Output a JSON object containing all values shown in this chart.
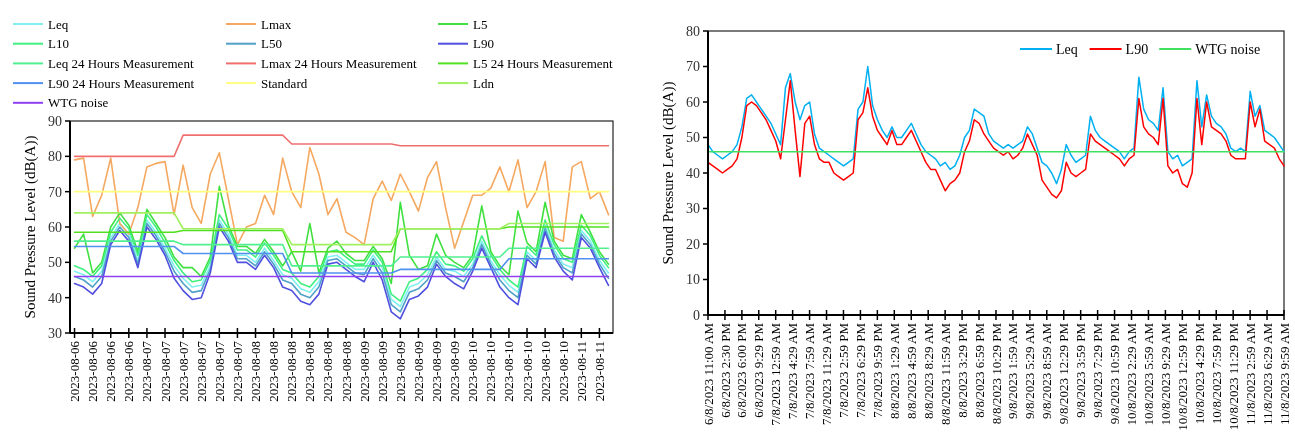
{
  "chart_data": [
    {
      "type": "line",
      "ylabel": "Sound Pressure Level (dB(A))",
      "legend": "top",
      "ylim": [
        30,
        90
      ],
      "yticks": [
        30,
        40,
        50,
        60,
        70,
        80,
        90
      ],
      "categories": [
        "2023-08-06",
        null,
        "2023-08-06",
        null,
        "2023-08-06",
        null,
        "2023-08-06",
        null,
        "2023-08-07",
        null,
        "2023-08-07",
        null,
        "2023-08-07",
        null,
        "2023-08-07",
        null,
        "2023-08-07",
        null,
        "2023-08-07",
        null,
        "2023-08-08",
        null,
        "2023-08-08",
        null,
        "2023-08-08",
        null,
        "2023-08-08",
        null,
        "2023-08-08",
        null,
        "2023-08-08",
        null,
        "2023-08-09",
        null,
        "2023-08-09",
        null,
        "2023-08-09",
        null,
        "2023-08-09",
        null,
        "2023-08-09",
        null,
        "2023-08-09",
        null,
        "2023-08-10",
        null,
        "2023-08-10",
        null,
        "2023-08-10",
        null,
        "2023-08-10",
        null,
        "2023-08-10",
        null,
        "2023-08-10",
        null,
        "2023-08-11",
        null,
        "2023-08-11",
        null
      ],
      "series": [
        {
          "name": "Leq",
          "color": "#80f0f0",
          "values": [
            47.5,
            46.5,
            44.5,
            47.5,
            57,
            61,
            58,
            50.5,
            62,
            58.5,
            54,
            49,
            45.5,
            43,
            43.5,
            49,
            62,
            58,
            52,
            52,
            50,
            54,
            50.5,
            46.5,
            45.5,
            42.5,
            41.5,
            44.5,
            51.5,
            52,
            50,
            48,
            48,
            52,
            48.5,
            39.5,
            37.5,
            43,
            44,
            46.5,
            51.5,
            48,
            47.5,
            46,
            49.5,
            56,
            50.5,
            46.5,
            43.5,
            41.5,
            53,
            50.5,
            60.5,
            53.5,
            49.5,
            48.5,
            59,
            56,
            50.5,
            47
          ]
        },
        {
          "name": "Lmax",
          "color": "#f5a860",
          "values": [
            79,
            79.5,
            63,
            69,
            79.5,
            61,
            58,
            65.5,
            77,
            78,
            78.5,
            63.5,
            77.5,
            65.5,
            61,
            75,
            81,
            68,
            55,
            60,
            61,
            69,
            63.5,
            79.5,
            70,
            65.5,
            82.5,
            75,
            63.5,
            68,
            58.5,
            57,
            55,
            68,
            73,
            67.5,
            75,
            70,
            64.5,
            74,
            78.5,
            65.5,
            54,
            61.5,
            69,
            69,
            71,
            77,
            70,
            79,
            65.5,
            70,
            78.5,
            57,
            56,
            77,
            78.5,
            68,
            70,
            63.5
          ]
        },
        {
          "name": "L5",
          "color": "#40e040",
          "values": [
            54,
            58,
            47,
            50,
            60,
            64,
            60.5,
            53,
            65,
            61,
            57,
            51.5,
            48.5,
            48.5,
            46,
            51.5,
            71.5,
            60.5,
            54.5,
            54.5,
            52.5,
            56.5,
            53,
            49,
            53,
            47.5,
            61,
            47,
            54,
            56,
            52.5,
            50.5,
            50.5,
            54.5,
            51,
            44,
            67,
            52,
            48,
            49,
            58,
            52,
            50,
            48.5,
            52,
            66,
            53,
            49,
            46.5,
            64.5,
            55.5,
            53,
            67,
            56,
            52,
            51,
            63.5,
            58.5,
            53,
            49.5
          ]
        },
        {
          "name": "L10",
          "color": "#40f080",
          "values": [
            49,
            48,
            46,
            49,
            58.5,
            62.5,
            59.5,
            52,
            63.5,
            60,
            55.5,
            50.5,
            47,
            44.5,
            45,
            50.5,
            63.5,
            59.5,
            53.5,
            53.5,
            51.5,
            55.5,
            52,
            48,
            47,
            44,
            43,
            46,
            53,
            53.5,
            51.5,
            49.5,
            49.5,
            53.5,
            50,
            41,
            39,
            44.5,
            45.5,
            48,
            53,
            49.5,
            49,
            47.5,
            51,
            57.5,
            52,
            48,
            45,
            43,
            54.5,
            52,
            62,
            55,
            51,
            50,
            60.5,
            57.5,
            52,
            48.5
          ]
        },
        {
          "name": "L50",
          "color": "#50a0c8",
          "values": [
            46,
            45,
            43,
            46,
            56,
            60,
            57,
            49.5,
            61,
            57.5,
            53,
            47.5,
            44,
            41.5,
            42,
            48,
            61,
            57,
            51,
            51,
            49,
            53,
            49.5,
            45,
            44,
            41,
            40,
            43,
            50.5,
            51,
            49,
            47,
            46.5,
            51,
            47,
            38,
            36,
            41.5,
            42.5,
            45,
            50.5,
            47,
            46,
            44.5,
            48.5,
            55,
            49.5,
            45,
            42,
            40,
            52,
            49.5,
            59.5,
            52.5,
            48.5,
            47,
            58,
            55,
            49.5,
            45.5
          ]
        },
        {
          "name": "L90",
          "color": "#5050e0",
          "values": [
            44,
            43,
            41,
            44,
            55,
            59,
            56,
            48.5,
            60,
            56.5,
            52,
            45.5,
            42,
            39.5,
            40,
            47,
            60,
            56,
            50,
            50,
            48,
            52,
            48.5,
            43,
            42,
            39,
            38,
            41,
            49.5,
            50,
            48,
            46,
            44.5,
            50,
            45,
            36,
            34,
            39.5,
            40.5,
            43,
            49.5,
            46,
            44,
            42.5,
            47.5,
            54,
            48.5,
            43,
            40,
            38,
            51,
            48.5,
            58.5,
            51.5,
            47.5,
            45,
            57,
            54,
            48.5,
            43.5
          ]
        },
        {
          "name": "Leq 24 Hours Measurement",
          "color": "#50f090",
          "values": [
            56,
            56,
            56,
            56,
            56,
            56,
            56,
            56,
            56,
            56,
            56,
            56,
            55,
            55,
            55,
            55,
            55,
            55,
            55,
            55,
            55,
            55,
            55,
            55,
            49,
            49,
            49,
            49,
            49,
            49,
            49,
            49,
            49,
            49,
            49,
            49,
            51.5,
            51.5,
            51.5,
            51.5,
            51.5,
            51.5,
            51.5,
            51.5,
            51.5,
            51.5,
            51.5,
            51.5,
            54,
            54,
            54,
            54,
            54,
            54,
            54,
            54,
            54,
            54,
            54,
            54
          ]
        },
        {
          "name": "Lmax 24 Hours Measurement",
          "color": "#f07070",
          "values": [
            80,
            80,
            80,
            80,
            80,
            80,
            80,
            80,
            80,
            80,
            80,
            80,
            86,
            86,
            86,
            86,
            86,
            86,
            86,
            86,
            86,
            86,
            86,
            86,
            83.5,
            83.5,
            83.5,
            83.5,
            83.5,
            83.5,
            83.5,
            83.5,
            83.5,
            83.5,
            83.5,
            83.5,
            83,
            83,
            83,
            83,
            83,
            83,
            83,
            83,
            83,
            83,
            83,
            83,
            83,
            83,
            83,
            83,
            83,
            83,
            83,
            83,
            83,
            83,
            83,
            83
          ]
        },
        {
          "name": "L5 24 Hours Measurement",
          "color": "#50e020",
          "values": [
            58.5,
            58.5,
            58.5,
            58.5,
            58.5,
            58.5,
            58.5,
            58.5,
            58.5,
            58.5,
            58.5,
            58.5,
            59,
            59,
            59,
            59,
            59,
            59,
            59,
            59,
            59,
            59,
            59,
            59,
            53,
            53,
            53,
            53,
            53,
            53,
            53,
            53,
            53,
            53,
            53,
            53,
            59.5,
            59.5,
            59.5,
            59.5,
            59.5,
            59.5,
            59.5,
            59.5,
            59.5,
            59.5,
            59.5,
            59.5,
            60,
            60,
            60,
            60,
            60,
            60,
            60,
            60,
            60,
            60,
            60,
            60
          ]
        },
        {
          "name": "L90 24 Hours Measurement",
          "color": "#5090f0",
          "values": [
            54.5,
            54.5,
            54.5,
            54.5,
            54.5,
            54.5,
            54.5,
            54.5,
            54.5,
            54.5,
            54.5,
            54.5,
            52.5,
            52.5,
            52.5,
            52.5,
            52.5,
            52.5,
            52.5,
            52.5,
            52.5,
            52.5,
            52.5,
            52.5,
            47,
            47,
            47,
            47,
            47,
            47,
            47,
            47,
            47,
            47,
            47,
            47,
            48,
            48,
            48,
            48,
            48,
            48,
            48,
            48,
            48,
            48,
            48,
            48,
            51,
            51,
            51,
            51,
            51,
            51,
            51,
            51,
            51,
            51,
            51,
            51
          ]
        },
        {
          "name": "Standard",
          "color": "#ffff80",
          "values": [
            70,
            70,
            70,
            70,
            70,
            70,
            70,
            70,
            70,
            70,
            70,
            70,
            70,
            70,
            70,
            70,
            70,
            70,
            70,
            70,
            70,
            70,
            70,
            70,
            70,
            70,
            70,
            70,
            70,
            70,
            70,
            70,
            70,
            70,
            70,
            70,
            70,
            70,
            70,
            70,
            70,
            70,
            70,
            70,
            70,
            70,
            70,
            70,
            70,
            70,
            70,
            70,
            70,
            70,
            70,
            70,
            70,
            70,
            70,
            70
          ]
        },
        {
          "name": "Ldn",
          "color": "#a0f060",
          "values": [
            64,
            64,
            64,
            64,
            64,
            64,
            64,
            64,
            64,
            64,
            64,
            64,
            59.5,
            59.5,
            59.5,
            59.5,
            59.5,
            59.5,
            59.5,
            59.5,
            59.5,
            59.5,
            59.5,
            59.5,
            55,
            55,
            55,
            55,
            55,
            55,
            55,
            55,
            55,
            55,
            55,
            55,
            59.5,
            59.5,
            59.5,
            59.5,
            59.5,
            59.5,
            59.5,
            59.5,
            59.5,
            59.5,
            59.5,
            59.5,
            61,
            61,
            61,
            61,
            61,
            61,
            61,
            61,
            61,
            61,
            61,
            61
          ]
        },
        {
          "name": "WTG noise",
          "color": "#9040f0",
          "values": [
            46,
            46,
            46,
            46,
            46,
            46,
            46,
            46,
            46,
            46,
            46,
            46,
            46,
            46,
            46,
            46,
            46,
            46,
            46,
            46,
            46,
            46,
            46,
            46,
            46,
            46,
            46,
            46,
            46,
            46,
            46,
            46,
            46,
            46,
            46,
            46,
            46,
            46,
            46,
            46,
            46,
            46,
            46,
            46,
            46,
            46,
            46,
            46,
            46,
            46,
            46,
            46,
            46,
            46,
            46,
            46,
            46,
            46,
            46,
            46
          ]
        }
      ]
    },
    {
      "type": "line",
      "ylabel": "Sound Pressure Level (dB(A))",
      "legend": "top right",
      "ylim": [
        0,
        80
      ],
      "yticks": [
        0,
        10,
        20,
        30,
        40,
        50,
        60,
        70,
        80
      ],
      "xlim": [
        "2023-08-06T11:00",
        "2023-08-11T09:59"
      ],
      "xticks": [
        {
          "value": "2023-08-06T11:00",
          "label": "6/8/2023 11:00 AM"
        },
        {
          "value": "2023-08-06T14:30",
          "label": "6/8/2023 2:30 PM"
        },
        {
          "value": "2023-08-06T18:00",
          "label": "6/8/2023 6:00 PM"
        },
        {
          "value": "2023-08-06T21:29",
          "label": "6/8/2023 9:29 PM"
        },
        {
          "value": "2023-08-07T00:59",
          "label": "7/8/2023 12:59 AM"
        },
        {
          "value": "2023-08-07T04:29",
          "label": "7/8/2023 4:29 AM"
        },
        {
          "value": "2023-08-07T07:59",
          "label": "7/8/2023 7:59 AM"
        },
        {
          "value": "2023-08-07T11:29",
          "label": "7/8/2023 11:29 AM"
        },
        {
          "value": "2023-08-07T14:59",
          "label": "7/8/2023 2:59 PM"
        },
        {
          "value": "2023-08-07T18:29",
          "label": "7/8/2023 6:29 PM"
        },
        {
          "value": "2023-08-07T21:59",
          "label": "7/8/2023 9:59 PM"
        },
        {
          "value": "2023-08-08T01:29",
          "label": "8/8/2023 1:29 AM"
        },
        {
          "value": "2023-08-08T04:59",
          "label": "8/8/2023 4:59 AM"
        },
        {
          "value": "2023-08-08T08:29",
          "label": "8/8/2023 8:29 AM"
        },
        {
          "value": "2023-08-08T11:59",
          "label": "8/8/2023 11:59 AM"
        },
        {
          "value": "2023-08-08T15:29",
          "label": "8/8/2023 3:29 PM"
        },
        {
          "value": "2023-08-08T18:59",
          "label": "8/8/2023 6:59 PM"
        },
        {
          "value": "2023-08-08T22:29",
          "label": "8/8/2023 10:29 PM"
        },
        {
          "value": "2023-08-09T01:59",
          "label": "9/8/2023 1:59 AM"
        },
        {
          "value": "2023-08-09T05:29",
          "label": "9/8/2023 5:29 AM"
        },
        {
          "value": "2023-08-09T08:59",
          "label": "9/8/2023 8:59 AM"
        },
        {
          "value": "2023-08-09T12:29",
          "label": "9/8/2023 12:29 PM"
        },
        {
          "value": "2023-08-09T15:59",
          "label": "9/8/2023 3:59 PM"
        },
        {
          "value": "2023-08-09T19:29",
          "label": "9/8/2023 7:29 PM"
        },
        {
          "value": "2023-08-09T22:59",
          "label": "9/8/2023 10:59 PM"
        },
        {
          "value": "2023-08-10T02:29",
          "label": "10/8/2023 2:29 AM"
        },
        {
          "value": "2023-08-10T05:59",
          "label": "10/8/2023 5:59 AM"
        },
        {
          "value": "2023-08-10T09:29",
          "label": "10/8/2023 9:29 AM"
        },
        {
          "value": "2023-08-10T12:59",
          "label": "10/8/2023 12:59 PM"
        },
        {
          "value": "2023-08-10T16:29",
          "label": "10/8/2023 4:29 PM"
        },
        {
          "value": "2023-08-10T19:59",
          "label": "10/8/2023 7:59 PM"
        },
        {
          "value": "2023-08-10T23:29",
          "label": "10/8/2023 11:29 PM"
        },
        {
          "value": "2023-08-11T02:59",
          "label": "11/8/2023 2:59 AM"
        },
        {
          "value": "2023-08-11T06:29",
          "label": "11/8/2023 6:29 AM"
        },
        {
          "value": "2023-08-11T09:59",
          "label": "11/8/2023 9:59 AM"
        }
      ],
      "x": [
        "2023-08-06T11:00",
        "2023-08-06T12:00",
        "2023-08-06T13:00",
        "2023-08-06T14:00",
        "2023-08-06T15:00",
        "2023-08-06T16:00",
        "2023-08-06T17:00",
        "2023-08-06T18:00",
        "2023-08-06T19:00",
        "2023-08-06T20:00",
        "2023-08-06T21:00",
        "2023-08-06T22:00",
        "2023-08-06T23:00",
        "2023-08-07T00:00",
        "2023-08-07T01:00",
        "2023-08-07T02:00",
        "2023-08-07T03:00",
        "2023-08-07T04:00",
        "2023-08-07T05:00",
        "2023-08-07T06:00",
        "2023-08-07T07:00",
        "2023-08-07T08:00",
        "2023-08-07T09:00",
        "2023-08-07T10:00",
        "2023-08-07T11:00",
        "2023-08-07T12:00",
        "2023-08-07T13:00",
        "2023-08-07T14:00",
        "2023-08-07T15:00",
        "2023-08-07T16:00",
        "2023-08-07T17:00",
        "2023-08-07T18:00",
        "2023-08-07T19:00",
        "2023-08-07T20:00",
        "2023-08-07T21:00",
        "2023-08-07T22:00",
        "2023-08-07T23:00",
        "2023-08-08T00:00",
        "2023-08-08T01:00",
        "2023-08-08T02:00",
        "2023-08-08T03:00",
        "2023-08-08T04:00",
        "2023-08-08T05:00",
        "2023-08-08T06:00",
        "2023-08-08T07:00",
        "2023-08-08T08:00",
        "2023-08-08T09:00",
        "2023-08-08T10:00",
        "2023-08-08T11:00",
        "2023-08-08T12:00",
        "2023-08-08T13:00",
        "2023-08-08T14:00",
        "2023-08-08T15:00",
        "2023-08-08T16:00",
        "2023-08-08T17:00",
        "2023-08-08T18:00",
        "2023-08-08T19:00",
        "2023-08-08T20:00",
        "2023-08-08T21:00",
        "2023-08-08T22:00",
        "2023-08-08T23:00",
        "2023-08-09T00:00",
        "2023-08-09T01:00",
        "2023-08-09T02:00",
        "2023-08-09T03:00",
        "2023-08-09T04:00",
        "2023-08-09T05:00",
        "2023-08-09T06:00",
        "2023-08-09T07:00",
        "2023-08-09T08:00",
        "2023-08-09T09:00",
        "2023-08-09T10:00",
        "2023-08-09T11:00",
        "2023-08-09T12:00",
        "2023-08-09T13:00",
        "2023-08-09T14:00",
        "2023-08-09T15:00",
        "2023-08-09T16:00",
        "2023-08-09T17:00",
        "2023-08-09T18:00",
        "2023-08-09T19:00",
        "2023-08-09T20:00",
        "2023-08-09T21:00",
        "2023-08-09T22:00",
        "2023-08-09T23:00",
        "2023-08-10T00:00",
        "2023-08-10T01:00",
        "2023-08-10T02:00",
        "2023-08-10T03:00",
        "2023-08-10T04:00",
        "2023-08-10T05:00",
        "2023-08-10T06:00",
        "2023-08-10T07:00",
        "2023-08-10T08:00",
        "2023-08-10T09:00",
        "2023-08-10T10:00",
        "2023-08-10T11:00",
        "2023-08-10T12:00",
        "2023-08-10T13:00",
        "2023-08-10T14:00",
        "2023-08-10T15:00",
        "2023-08-10T16:00",
        "2023-08-10T17:00",
        "2023-08-10T18:00",
        "2023-08-10T19:00",
        "2023-08-10T20:00",
        "2023-08-10T21:00",
        "2023-08-10T22:00",
        "2023-08-10T23:00",
        "2023-08-11T00:00",
        "2023-08-11T01:00",
        "2023-08-11T02:00",
        "2023-08-11T03:00",
        "2023-08-11T04:00",
        "2023-08-11T05:00",
        "2023-08-11T06:00",
        "2023-08-11T07:00",
        "2023-08-11T08:00",
        "2023-08-11T09:00",
        "2023-08-11T09:59"
      ],
      "series": [
        {
          "name": "Leq",
          "color": "#00b0f0",
          "values": [
            48,
            46,
            45,
            44,
            45,
            46,
            48,
            53,
            61,
            62,
            60,
            58,
            56,
            54,
            51,
            48,
            64,
            68,
            60,
            55,
            59,
            60,
            51,
            47,
            46,
            45,
            44,
            43,
            42,
            43,
            44,
            58,
            60,
            70,
            59,
            55,
            52,
            50,
            53,
            50,
            50,
            52,
            54,
            51,
            48,
            46,
            45,
            44,
            42,
            43,
            41,
            42,
            45,
            50,
            52,
            58,
            57,
            56,
            51,
            49,
            48,
            47,
            48,
            47,
            48,
            49,
            53,
            51,
            47,
            43,
            42,
            40,
            37,
            41,
            48,
            45,
            43,
            44,
            45,
            56,
            52,
            50,
            49,
            48,
            47,
            46,
            44,
            46,
            47,
            67,
            58,
            55,
            54,
            52,
            64,
            46,
            44,
            45,
            42,
            43,
            44,
            66,
            53,
            62,
            56,
            54,
            53,
            51,
            47,
            46,
            47,
            46,
            63,
            56,
            59,
            52,
            51,
            50,
            48,
            46
          ]
        },
        {
          "name": "L90",
          "color": "#ff0000",
          "values": [
            43,
            42,
            41,
            40,
            41,
            42,
            44,
            50,
            59,
            60,
            59,
            57,
            55,
            52,
            49,
            44,
            55,
            66,
            52,
            39,
            54,
            56,
            48,
            44,
            43,
            43,
            40,
            39,
            38,
            39,
            40,
            55,
            57,
            64,
            56,
            52,
            50,
            48,
            52,
            48,
            48,
            50,
            52,
            49,
            46,
            43,
            41,
            41,
            38,
            35,
            37,
            38,
            40,
            46,
            49,
            55,
            54,
            51,
            49,
            47,
            46,
            45,
            46,
            44,
            45,
            47,
            51,
            48,
            45,
            38,
            36,
            34,
            33,
            35,
            43,
            40,
            39,
            40,
            41,
            51,
            49,
            48,
            47,
            46,
            45,
            44,
            42,
            44,
            45,
            61,
            53,
            51,
            50,
            48,
            61,
            42,
            40,
            41,
            37,
            36,
            40,
            61,
            48,
            60,
            53,
            52,
            51,
            49,
            45,
            44,
            44,
            44,
            60,
            53,
            58,
            49,
            48,
            47,
            44,
            42
          ]
        },
        {
          "name": "WTG noise",
          "color": "#40e060",
          "x": [
            "2023-08-06T11:00",
            "2023-08-11T09:59"
          ],
          "values": [
            46,
            46
          ]
        }
      ]
    }
  ]
}
